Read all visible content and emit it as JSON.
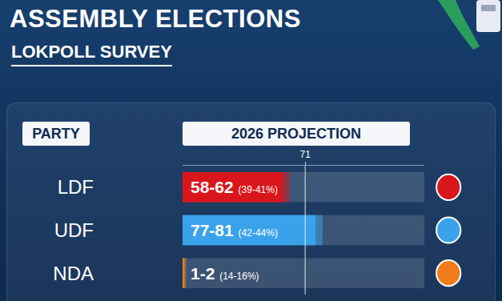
{
  "chart_data": {
    "type": "bar",
    "title": "ASSEMBLY ELECTIONS",
    "subtitle": "LOKPOLL SURVEY",
    "column_headers": [
      "PARTY",
      "2026 PROJECTION"
    ],
    "orientation": "horizontal",
    "categories": [
      "LDF",
      "UDF",
      "NDA"
    ],
    "values_low": [
      58,
      77,
      1
    ],
    "values_high": [
      62,
      81,
      2
    ],
    "value_labels": [
      "58-62",
      "77-81",
      "1-2"
    ],
    "share_labels": [
      "(39-41%)",
      "(42-44%)",
      "(14-16%)"
    ],
    "colors": [
      "#d9161c",
      "#3aa2ea",
      "#f07c1c"
    ],
    "xlim": [
      0,
      140
    ],
    "xticks": [
      71
    ],
    "grid": true,
    "data_labels": true
  }
}
